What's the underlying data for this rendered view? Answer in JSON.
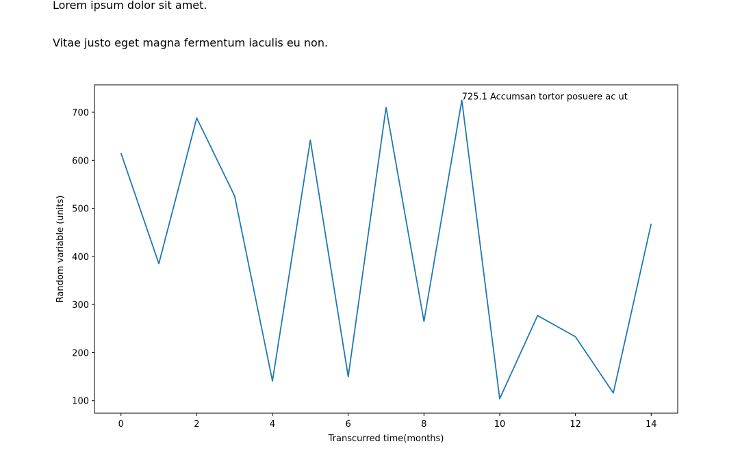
{
  "header": {
    "title": "Lorem ipsum dolor sit amet.",
    "subtitle": "Vitae justo eget magna fermentum iaculis eu non."
  },
  "chart_data": {
    "type": "line",
    "x": [
      0,
      1,
      2,
      3,
      4,
      5,
      6,
      7,
      8,
      9,
      10,
      11,
      12,
      13,
      14
    ],
    "series": [
      {
        "values": [
          615,
          385,
          688,
          526,
          141,
          642,
          150,
          710,
          265,
          725.1,
          104,
          277,
          233,
          116,
          468
        ],
        "color": "#1f77b4"
      }
    ],
    "xlabel": "Transcurred time(months)",
    "ylabel": "Random variable (units)",
    "xlim": [
      -0.7,
      14.7
    ],
    "ylim": [
      74,
      757
    ],
    "xticks": [
      0,
      2,
      4,
      6,
      8,
      10,
      12,
      14
    ],
    "yticks": [
      100,
      200,
      300,
      400,
      500,
      600,
      700
    ],
    "grid": false,
    "annotations": [
      {
        "x": 9,
        "y": 725.1,
        "text": "725.1 Accumsan tortor posuere ac ut"
      }
    ]
  }
}
